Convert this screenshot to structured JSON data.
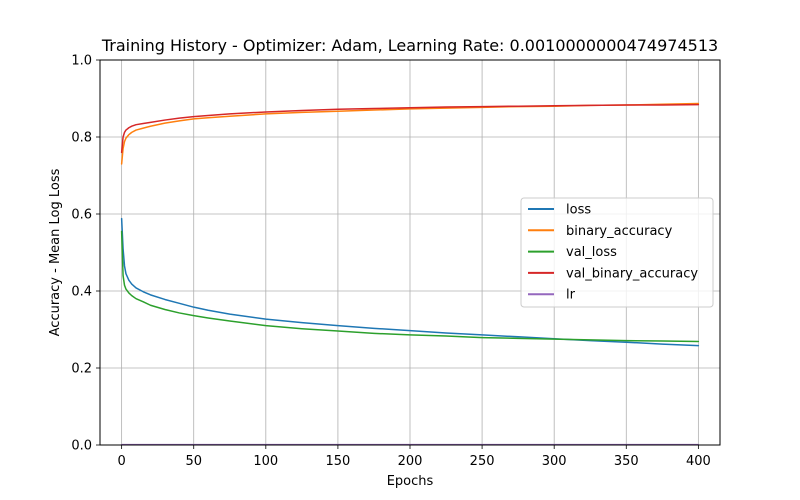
{
  "chart_data": {
    "type": "line",
    "title": "Training History - Optimizer: Adam, Learning Rate: 0.0010000000474974513",
    "xlabel": "Epochs",
    "ylabel": "Accuracy - Mean Log Loss",
    "xlim": [
      -15,
      415
    ],
    "ylim": [
      0,
      1
    ],
    "xticks": [
      0,
      50,
      100,
      150,
      200,
      250,
      300,
      350,
      400
    ],
    "yticks": [
      0.0,
      0.2,
      0.4,
      0.6,
      0.8,
      1.0
    ],
    "xtick_labels": [
      "0",
      "50",
      "100",
      "150",
      "200",
      "250",
      "300",
      "350",
      "400"
    ],
    "ytick_labels": [
      "0.0",
      "0.2",
      "0.4",
      "0.6",
      "0.8",
      "1.0"
    ],
    "grid": true,
    "legend_position": "center-right",
    "series": [
      {
        "name": "loss",
        "color": "#1f77b4",
        "x": [
          0,
          1,
          2,
          3,
          5,
          7,
          10,
          15,
          20,
          30,
          40,
          50,
          60,
          75,
          100,
          125,
          150,
          175,
          200,
          225,
          250,
          275,
          300,
          325,
          350,
          375,
          400
        ],
        "y": [
          0.588,
          0.51,
          0.465,
          0.445,
          0.428,
          0.418,
          0.408,
          0.398,
          0.39,
          0.378,
          0.368,
          0.358,
          0.35,
          0.34,
          0.327,
          0.318,
          0.31,
          0.303,
          0.297,
          0.291,
          0.286,
          0.281,
          0.276,
          0.271,
          0.267,
          0.262,
          0.258
        ]
      },
      {
        "name": "binary_accuracy",
        "color": "#ff7f0e",
        "x": [
          0,
          1,
          2,
          3,
          5,
          7,
          10,
          15,
          20,
          30,
          40,
          50,
          60,
          75,
          100,
          125,
          150,
          175,
          200,
          225,
          250,
          275,
          300,
          325,
          350,
          375,
          400
        ],
        "y": [
          0.73,
          0.77,
          0.788,
          0.797,
          0.806,
          0.812,
          0.818,
          0.823,
          0.828,
          0.836,
          0.842,
          0.847,
          0.85,
          0.854,
          0.86,
          0.864,
          0.867,
          0.87,
          0.873,
          0.875,
          0.877,
          0.879,
          0.88,
          0.882,
          0.883,
          0.885,
          0.887
        ]
      },
      {
        "name": "val_loss",
        "color": "#2ca02c",
        "x": [
          0,
          1,
          2,
          3,
          5,
          7,
          10,
          15,
          20,
          30,
          40,
          50,
          60,
          75,
          100,
          125,
          150,
          175,
          200,
          225,
          250,
          275,
          300,
          325,
          350,
          375,
          400
        ],
        "y": [
          0.555,
          0.44,
          0.415,
          0.405,
          0.395,
          0.388,
          0.38,
          0.372,
          0.363,
          0.352,
          0.343,
          0.336,
          0.33,
          0.322,
          0.31,
          0.302,
          0.296,
          0.29,
          0.286,
          0.283,
          0.279,
          0.277,
          0.275,
          0.273,
          0.271,
          0.27,
          0.269
        ]
      },
      {
        "name": "val_binary_accuracy",
        "color": "#d62728",
        "x": [
          0,
          1,
          2,
          3,
          5,
          7,
          10,
          15,
          20,
          30,
          40,
          50,
          60,
          75,
          100,
          125,
          150,
          175,
          200,
          225,
          250,
          275,
          300,
          325,
          350,
          375,
          400
        ],
        "y": [
          0.76,
          0.8,
          0.812,
          0.818,
          0.824,
          0.828,
          0.832,
          0.835,
          0.838,
          0.844,
          0.849,
          0.853,
          0.856,
          0.86,
          0.865,
          0.869,
          0.872,
          0.874,
          0.876,
          0.878,
          0.879,
          0.88,
          0.881,
          0.882,
          0.883,
          0.883,
          0.884
        ]
      },
      {
        "name": "lr",
        "color": "#9467bd",
        "x": [
          0,
          400
        ],
        "y": [
          0.001,
          0.001
        ]
      }
    ]
  }
}
